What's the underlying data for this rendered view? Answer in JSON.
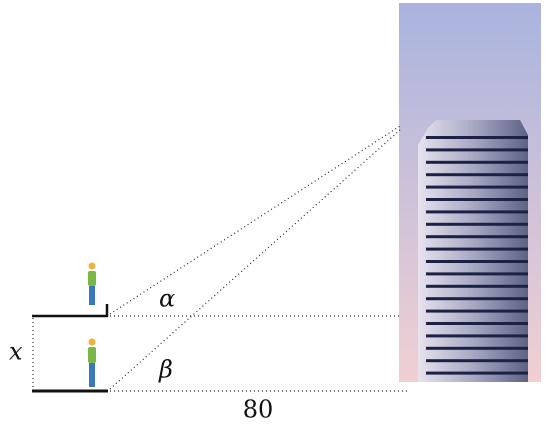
{
  "labels": {
    "height": "x",
    "angle_top": "α",
    "angle_bottom": "β",
    "distance": 80
  }
}
